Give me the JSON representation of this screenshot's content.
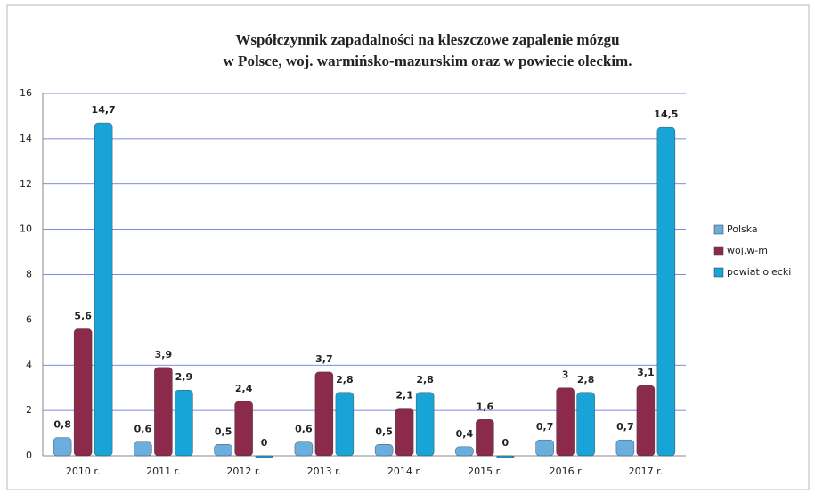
{
  "chart_data": {
    "type": "bar",
    "title": [
      "Współczynnik zapadalności na kleszczowe zapalenie mózgu",
      "w Polsce, woj. warmińsko-mazurskim oraz w powiecie oleckim."
    ],
    "categories": [
      "2010 r.",
      "2011 r.",
      "2012 r.",
      "2013 r.",
      "2014 r.",
      "2015 r.",
      "2016 r",
      "2017 r."
    ],
    "series": [
      {
        "name": "Polska",
        "color": "#6aaee0",
        "values": [
          0.8,
          0.6,
          0.5,
          0.6,
          0.5,
          0.4,
          0.7,
          0.7
        ],
        "value_labels": [
          "0,8",
          "0,6",
          "0,5",
          "0,6",
          "0,5",
          "0,4",
          "0,7",
          "0,7"
        ]
      },
      {
        "name": "woj.w-m",
        "color": "#8b2a4a",
        "values": [
          5.6,
          3.9,
          2.4,
          3.7,
          2.1,
          1.6,
          3,
          3.1
        ],
        "value_labels": [
          "5,6",
          "3,9",
          "2,4",
          "3,7",
          "2,1",
          "1,6",
          "3",
          "3,1"
        ]
      },
      {
        "name": "powiat olecki",
        "color": "#18a4d6",
        "values": [
          14.7,
          2.9,
          0,
          2.8,
          2.8,
          0,
          2.8,
          14.5
        ],
        "value_labels": [
          "14,7",
          "2,9",
          "0",
          "2,8",
          "2,8",
          "0",
          "2,8",
          "14,5"
        ]
      }
    ],
    "ylim": [
      0,
      16
    ],
    "yticks": [
      0,
      2,
      4,
      6,
      8,
      10,
      12,
      14,
      16
    ],
    "grid": true,
    "legend": "right"
  }
}
